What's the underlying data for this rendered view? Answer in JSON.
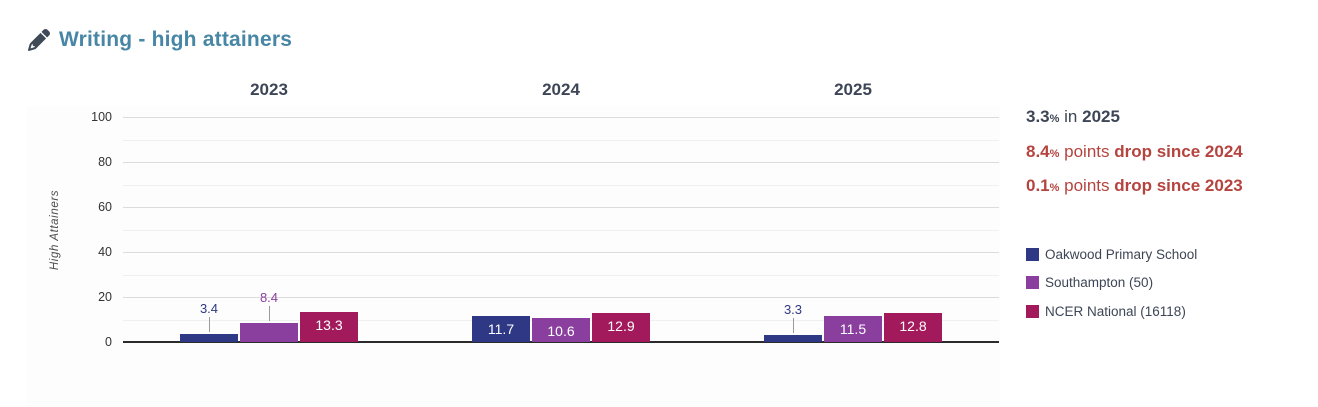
{
  "header": {
    "title": "Writing - high attainers",
    "icon": "pencil-icon"
  },
  "chart_data": {
    "type": "bar",
    "title": "Writing - high attainers",
    "categories": [
      "2023",
      "2024",
      "2025"
    ],
    "series": [
      {
        "name": "Oakwood Primary School",
        "color": "#2e3884",
        "values": [
          3.4,
          11.7,
          3.3
        ]
      },
      {
        "name": "Southampton (50)",
        "color": "#8a3f9f",
        "values": [
          8.4,
          10.6,
          11.5
        ]
      },
      {
        "name": "NCER National (16118)",
        "color": "#a21a5b",
        "values": [
          13.3,
          12.9,
          12.8
        ]
      }
    ],
    "ylabel": "High Attainers",
    "xlabel": "",
    "ylim": [
      0,
      100
    ],
    "yticks": [
      0,
      20,
      40,
      60,
      80,
      100
    ],
    "grid": true,
    "legend_position": "right"
  },
  "stats": {
    "items": [
      {
        "value": "3.3",
        "unit": "%",
        "connector": " in ",
        "emphasis": "2025",
        "kind": "current"
      },
      {
        "value": "8.4",
        "unit": "%",
        "connector": " points ",
        "emphasis": "drop since 2024",
        "kind": "drop"
      },
      {
        "value": "0.1",
        "unit": "%",
        "connector": " points ",
        "emphasis": "drop since 2023",
        "kind": "drop"
      }
    ]
  },
  "colors": {
    "title": "#4886a5",
    "text_dark": "#3d4656",
    "drop_red": "#b5443f",
    "axis": "#2b2b2b"
  }
}
